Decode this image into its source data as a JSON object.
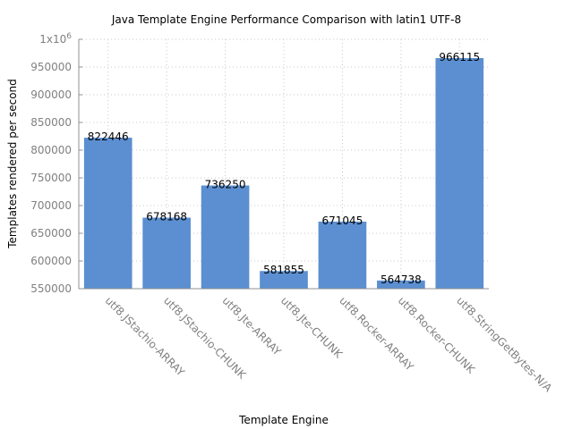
{
  "chart_data": {
    "type": "bar",
    "title": "Java Template Engine Performance Comparison with latin1 UTF-8",
    "xlabel": "Template Engine",
    "ylabel": "Templates rendered per second",
    "ylim": [
      550000,
      1000000
    ],
    "grid": true,
    "bar_color": "#5b8fd1",
    "yticks": [
      550000,
      600000,
      650000,
      700000,
      750000,
      800000,
      850000,
      900000,
      950000,
      1000000
    ],
    "ytick_labels": [
      "550000",
      "600000",
      "650000",
      "700000",
      "750000",
      "800000",
      "850000",
      "900000",
      "950000"
    ],
    "ytick_top": {
      "base": "1x10",
      "exp": "6"
    },
    "categories": [
      "utf8.JStachio-ARRAY",
      "utf8.JStachio-CHUNK",
      "utf8.Jte-ARRAY",
      "utf8.Jte-CHUNK",
      "utf8.Rocker-ARRAY",
      "utf8.Rocker-CHUNK",
      "utf8.StringGetBytes-N/A"
    ],
    "values": [
      822446,
      678168,
      736250,
      581855,
      671045,
      564738,
      966115
    ]
  }
}
